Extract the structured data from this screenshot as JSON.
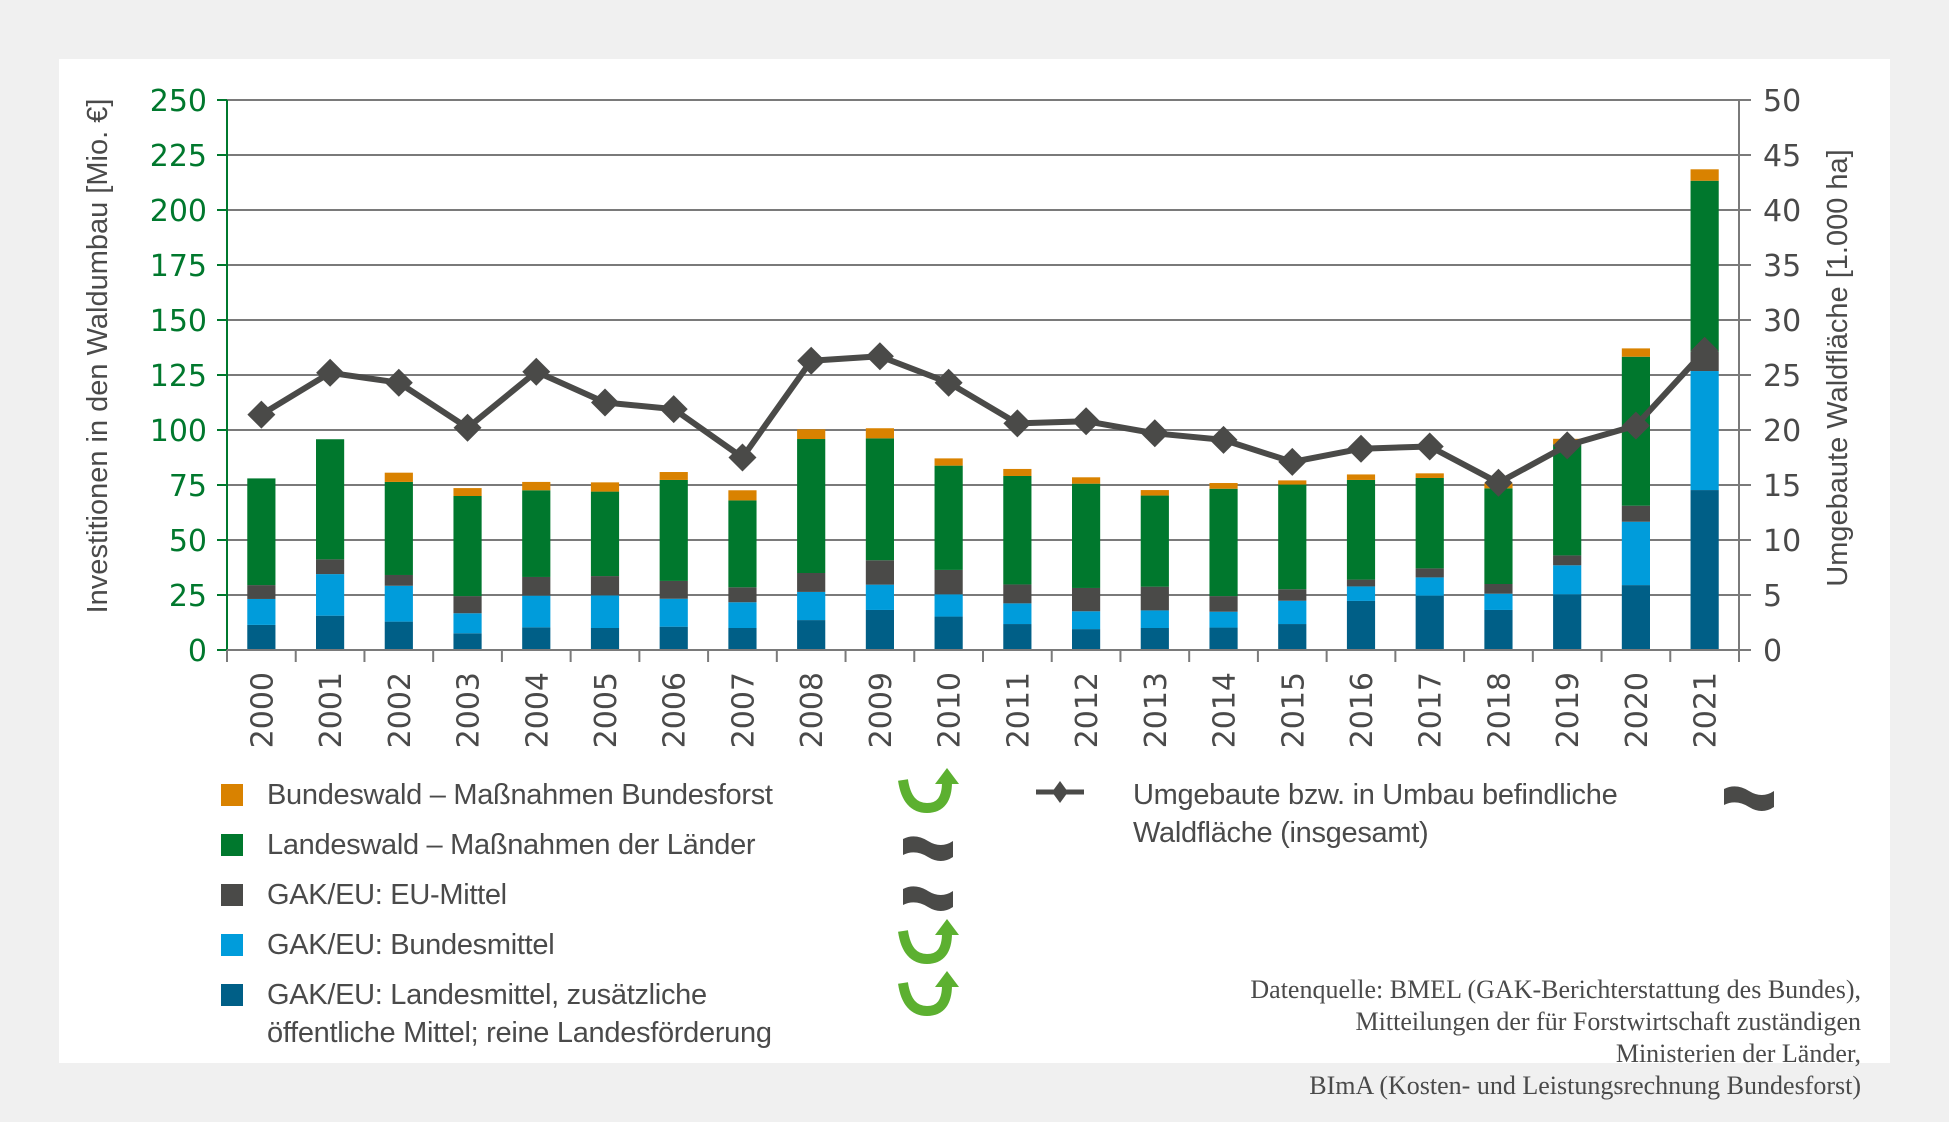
{
  "chart_data": {
    "type": "bar",
    "stacked": true,
    "categories": [
      "2000",
      "2001",
      "2002",
      "2003",
      "2004",
      "2005",
      "2006",
      "2007",
      "2008",
      "2009",
      "2010",
      "2011",
      "2012",
      "2013",
      "2014",
      "2015",
      "2016",
      "2017",
      "2018",
      "2019",
      "2020",
      "2021"
    ],
    "series": [
      {
        "name": "GAK/EU: Landesmittel, zusätzliche öffentliche Mittel; reine Landesförderung",
        "color": "#005f87",
        "values": [
          11.4,
          15.6,
          12.9,
          7.6,
          10.3,
          10.0,
          10.6,
          10.0,
          13.6,
          18.2,
          15.2,
          11.8,
          9.5,
          10.0,
          10.2,
          11.8,
          22.3,
          24.7,
          18.2,
          25.3,
          29.5,
          72.7
        ]
      },
      {
        "name": "GAK/EU: Bundesmittel",
        "color": "#009cdb",
        "values": [
          11.8,
          18.9,
          16.3,
          9.1,
          14.4,
          14.8,
          12.7,
          11.7,
          12.8,
          11.5,
          10.1,
          9.4,
          8.1,
          8.0,
          7.2,
          10.6,
          6.6,
          8.3,
          7.4,
          13.2,
          28.8,
          54.1
        ]
      },
      {
        "name": "GAK/EU: EU-Mittel",
        "color": "#4a4a48",
        "values": [
          6.3,
          6.7,
          4.9,
          7.8,
          8.5,
          8.8,
          8.1,
          6.8,
          8.6,
          11.1,
          11.1,
          8.6,
          10.6,
          10.8,
          7.1,
          5.2,
          3.1,
          4.1,
          4.4,
          4.5,
          7.3,
          8.8
        ]
      },
      {
        "name": "Landeswald – Maßnahmen der Länder",
        "color": "#00782d",
        "values": [
          48.5,
          54.6,
          42.3,
          45.5,
          39.4,
          38.4,
          45.9,
          39.5,
          60.9,
          55.4,
          47.4,
          49.3,
          47.4,
          41.4,
          48.8,
          47.6,
          45.3,
          41.1,
          43.5,
          50.5,
          67.7,
          77.7
        ]
      },
      {
        "name": "Bundeswald – Maßnahmen Bundesforst",
        "color": "#d98200",
        "values": [
          0,
          0,
          4.2,
          3.6,
          3.8,
          4.2,
          3.6,
          4.6,
          4.4,
          4.6,
          3.3,
          3.2,
          2.9,
          2.5,
          2.6,
          1.9,
          2.5,
          2.1,
          2.3,
          2.5,
          3.8,
          5.2
        ]
      }
    ],
    "line_series": {
      "name": "Umgebaute bzw. in Umbau befindliche Waldfläche (insgesamt)",
      "color": "#4a4a48",
      "axis": "right",
      "values": [
        21.4,
        25.2,
        24.3,
        20.2,
        25.3,
        22.5,
        21.9,
        17.5,
        26.3,
        26.7,
        24.3,
        20.6,
        20.8,
        19.7,
        19.1,
        17.1,
        18.3,
        18.5,
        15.2,
        18.6,
        20.4,
        27.2
      ]
    },
    "ylabel": "Investitionen in den Waldumbau [Mio. €]",
    "y2label": "Umgebaute Waldfläche [1.000 ha]",
    "ylim": [
      0,
      250
    ],
    "yticks": [
      0,
      25,
      50,
      75,
      100,
      125,
      150,
      175,
      200,
      225,
      250
    ],
    "y2lim": [
      0,
      50
    ],
    "y2ticks": [
      0,
      5,
      10,
      15,
      20,
      25,
      30,
      35,
      40,
      45,
      50
    ],
    "grid": true,
    "legend_position": "bottom"
  },
  "legend": {
    "items": [
      {
        "label": "Bundeswald – Maßnahmen Bundesforst",
        "color": "#d98200",
        "trend": "up"
      },
      {
        "label": "Landeswald – Maßnahmen der Länder",
        "color": "#00782d",
        "trend": "stable"
      },
      {
        "label": "GAK/EU: EU-Mittel",
        "color": "#4a4a48",
        "trend": "stable"
      },
      {
        "label": "GAK/EU: Bundesmittel",
        "color": "#009cdb",
        "trend": "up"
      },
      {
        "label": "GAK/EU: Landesmittel, zusätzliche",
        "label2": "öffentliche Mittel; reine Landesförderung",
        "color": "#005f87",
        "trend": "up"
      }
    ],
    "line_item": {
      "label": "Umgebaute bzw. in Umbau befindliche",
      "label2": "Waldfläche (insgesamt)",
      "trend": "stable"
    }
  },
  "source": {
    "lines": [
      "Datenquelle: BMEL (GAK-Berichterstattung des Bundes),",
      "Mitteilungen der für Forstwirtschaft zuständigen",
      "Ministerien der Länder,",
      "BImA (Kosten- und Leistungsrechnung Bundesforst)"
    ]
  },
  "colors": {
    "axis_left": "#00782d",
    "text": "#4a4a4a",
    "trend_up": "#5cb030",
    "trend_stable": "#4a4a48"
  }
}
